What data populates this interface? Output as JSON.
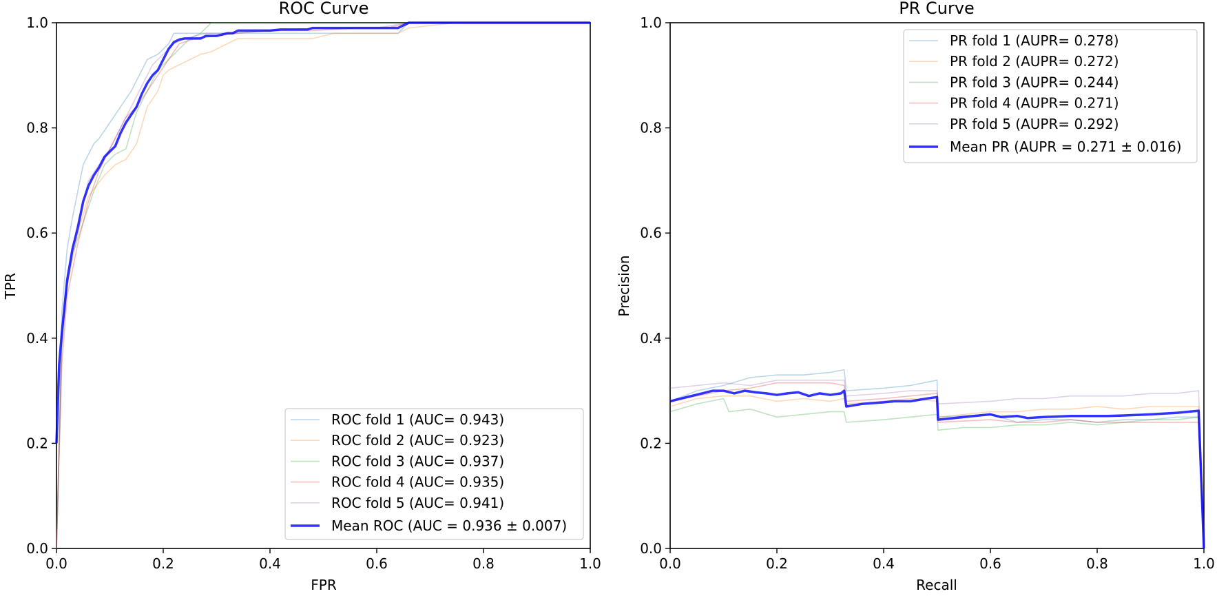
{
  "colors": {
    "fold1": "#1f77b4",
    "fold2": "#ff7f0e",
    "fold3": "#2ca02c",
    "fold4": "#d62728",
    "fold5": "#9467bd",
    "mean": "#0000ff"
  },
  "chart_data": [
    {
      "type": "line",
      "title": "ROC Curve",
      "xlabel": "FPR",
      "ylabel": "TPR",
      "xlim": [
        0,
        1
      ],
      "ylim": [
        0,
        1
      ],
      "xticks": [
        "0.0",
        "0.2",
        "0.4",
        "0.6",
        "0.8",
        "1.0"
      ],
      "yticks": [
        "0.0",
        "0.2",
        "0.4",
        "0.6",
        "0.8",
        "1.0"
      ],
      "grid": false,
      "legend_position": "lower-right",
      "series": [
        {
          "name": "ROC fold 1 (AUC= 0.943)",
          "color_key": "fold1",
          "x": [
            0,
            0.005,
            0.01,
            0.02,
            0.03,
            0.05,
            0.07,
            0.08,
            0.1,
            0.12,
            0.14,
            0.17,
            0.19,
            0.21,
            0.22,
            0.24,
            0.26,
            0.3,
            0.36,
            0.45,
            0.5,
            0.56,
            0.64,
            0.66,
            0.78,
            1
          ],
          "y": [
            0,
            0.2,
            0.45,
            0.57,
            0.63,
            0.73,
            0.77,
            0.78,
            0.81,
            0.84,
            0.87,
            0.93,
            0.94,
            0.96,
            0.98,
            0.98,
            0.98,
            0.98,
            0.98,
            0.98,
            0.98,
            0.98,
            0.98,
            1,
            1,
            1
          ]
        },
        {
          "name": "ROC fold 2 (AUC= 0.923)",
          "color_key": "fold2",
          "x": [
            0,
            0.01,
            0.02,
            0.04,
            0.06,
            0.09,
            0.11,
            0.13,
            0.15,
            0.17,
            0.19,
            0.2,
            0.21,
            0.23,
            0.25,
            0.27,
            0.29,
            0.3,
            0.32,
            0.34,
            0.4,
            0.48,
            0.52,
            0.58,
            0.64,
            0.66,
            0.75,
            0.8,
            1
          ],
          "y": [
            0,
            0.4,
            0.5,
            0.6,
            0.67,
            0.71,
            0.73,
            0.74,
            0.77,
            0.84,
            0.87,
            0.9,
            0.91,
            0.92,
            0.93,
            0.94,
            0.945,
            0.95,
            0.96,
            0.97,
            0.97,
            0.97,
            0.98,
            0.98,
            0.98,
            0.99,
            1,
            1,
            1
          ]
        },
        {
          "name": "ROC fold 3 (AUC= 0.937)",
          "color_key": "fold3",
          "x": [
            0,
            0.01,
            0.02,
            0.03,
            0.05,
            0.07,
            0.09,
            0.11,
            0.13,
            0.15,
            0.17,
            0.19,
            0.21,
            0.23,
            0.25,
            0.27,
            0.29,
            0.3,
            0.35,
            0.5,
            0.66,
            0.8,
            1
          ],
          "y": [
            0,
            0.38,
            0.5,
            0.56,
            0.62,
            0.68,
            0.73,
            0.75,
            0.76,
            0.83,
            0.87,
            0.91,
            0.93,
            0.95,
            0.97,
            0.98,
            1,
            1,
            1,
            1,
            1,
            1,
            1
          ]
        },
        {
          "name": "ROC fold 4 (AUC= 0.935)",
          "color_key": "fold4",
          "x": [
            0,
            0.01,
            0.02,
            0.04,
            0.06,
            0.08,
            0.1,
            0.12,
            0.13,
            0.15,
            0.17,
            0.19,
            0.21,
            0.23,
            0.26,
            0.3,
            0.34,
            0.4,
            0.48,
            0.56,
            0.62,
            0.66,
            0.8,
            1
          ],
          "y": [
            0,
            0.35,
            0.48,
            0.58,
            0.66,
            0.72,
            0.76,
            0.8,
            0.82,
            0.84,
            0.87,
            0.9,
            0.93,
            0.96,
            0.97,
            0.975,
            0.98,
            0.985,
            0.985,
            0.99,
            0.99,
            1,
            1,
            1
          ]
        },
        {
          "name": "ROC fold 5 (AUC= 0.941)",
          "color_key": "fold5",
          "x": [
            0,
            0.01,
            0.02,
            0.04,
            0.06,
            0.08,
            0.1,
            0.12,
            0.14,
            0.16,
            0.18,
            0.2,
            0.22,
            0.24,
            0.28,
            0.32,
            0.4,
            0.5,
            0.6,
            0.66,
            0.8,
            1
          ],
          "y": [
            0,
            0.4,
            0.52,
            0.62,
            0.7,
            0.73,
            0.76,
            0.8,
            0.84,
            0.88,
            0.92,
            0.94,
            0.96,
            0.97,
            0.98,
            0.98,
            0.985,
            0.99,
            0.99,
            1,
            1,
            1
          ]
        },
        {
          "name": "Mean ROC (AUC = 0.936 ± 0.007)",
          "color_key": "mean",
          "mean": true,
          "x": [
            0,
            0.005,
            0.01,
            0.02,
            0.03,
            0.04,
            0.05,
            0.06,
            0.07,
            0.08,
            0.09,
            0.1,
            0.11,
            0.12,
            0.13,
            0.14,
            0.15,
            0.16,
            0.17,
            0.18,
            0.19,
            0.2,
            0.21,
            0.22,
            0.23,
            0.24,
            0.25,
            0.27,
            0.28,
            0.29,
            0.3,
            0.32,
            0.33,
            0.34,
            0.35,
            0.4,
            0.42,
            0.45,
            0.47,
            0.48,
            0.55,
            0.6,
            0.62,
            0.63,
            0.64,
            0.66,
            0.7,
            0.8,
            0.9,
            1
          ],
          "y": [
            0.2,
            0.35,
            0.41,
            0.51,
            0.57,
            0.61,
            0.66,
            0.69,
            0.71,
            0.725,
            0.745,
            0.755,
            0.765,
            0.79,
            0.81,
            0.825,
            0.84,
            0.865,
            0.885,
            0.9,
            0.91,
            0.93,
            0.95,
            0.963,
            0.968,
            0.97,
            0.97,
            0.97,
            0.975,
            0.975,
            0.975,
            0.98,
            0.98,
            0.985,
            0.985,
            0.985,
            0.987,
            0.987,
            0.987,
            0.99,
            0.99,
            0.99,
            0.99,
            0.99,
            0.99,
            1,
            1,
            1,
            1,
            1
          ]
        }
      ]
    },
    {
      "type": "line",
      "title": "PR Curve",
      "xlabel": "Recall",
      "ylabel": "Precision",
      "xlim": [
        0,
        1
      ],
      "ylim": [
        0,
        1
      ],
      "xticks": [
        "0.0",
        "0.2",
        "0.4",
        "0.6",
        "0.8",
        "1.0"
      ],
      "yticks": [
        "0.0",
        "0.2",
        "0.4",
        "0.6",
        "0.8",
        "1.0"
      ],
      "grid": false,
      "legend_position": "upper-right",
      "series": [
        {
          "name": "PR fold 1 (AUPR= 0.278)",
          "color_key": "fold1",
          "x": [
            0,
            0.05,
            0.1,
            0.15,
            0.2,
            0.25,
            0.3,
            0.326,
            0.33,
            0.4,
            0.45,
            0.5,
            0.502,
            0.6,
            0.65,
            0.7,
            0.75,
            0.8,
            0.85,
            0.9,
            0.95,
            0.99,
            1
          ],
          "y": [
            0.28,
            0.3,
            0.31,
            0.325,
            0.33,
            0.33,
            0.335,
            0.34,
            0.3,
            0.305,
            0.31,
            0.32,
            0.25,
            0.255,
            0.24,
            0.245,
            0.245,
            0.24,
            0.245,
            0.245,
            0.25,
            0.25,
            0
          ]
        },
        {
          "name": "PR fold 2 (AUPR= 0.272)",
          "color_key": "fold2",
          "x": [
            0,
            0.05,
            0.1,
            0.15,
            0.2,
            0.25,
            0.3,
            0.326,
            0.33,
            0.4,
            0.45,
            0.5,
            0.502,
            0.6,
            0.65,
            0.7,
            0.75,
            0.8,
            0.85,
            0.9,
            0.95,
            0.99,
            1
          ],
          "y": [
            0.27,
            0.285,
            0.29,
            0.29,
            0.28,
            0.285,
            0.28,
            0.285,
            0.275,
            0.28,
            0.285,
            0.28,
            0.25,
            0.26,
            0.26,
            0.265,
            0.265,
            0.27,
            0.265,
            0.27,
            0.27,
            0.27,
            0
          ]
        },
        {
          "name": "PR fold 3 (AUPR= 0.244)",
          "color_key": "fold3",
          "x": [
            0,
            0.05,
            0.1,
            0.11,
            0.15,
            0.2,
            0.25,
            0.3,
            0.326,
            0.33,
            0.4,
            0.45,
            0.5,
            0.502,
            0.55,
            0.6,
            0.65,
            0.7,
            0.75,
            0.8,
            0.85,
            0.9,
            0.95,
            0.99,
            1
          ],
          "y": [
            0.26,
            0.275,
            0.285,
            0.26,
            0.265,
            0.25,
            0.255,
            0.26,
            0.26,
            0.24,
            0.245,
            0.25,
            0.255,
            0.225,
            0.23,
            0.23,
            0.235,
            0.235,
            0.24,
            0.235,
            0.24,
            0.245,
            0.245,
            0.25,
            0
          ]
        },
        {
          "name": "PR fold 4 (AUPR= 0.271)",
          "color_key": "fold4",
          "x": [
            0,
            0.05,
            0.1,
            0.15,
            0.2,
            0.25,
            0.3,
            0.326,
            0.33,
            0.4,
            0.45,
            0.5,
            0.502,
            0.6,
            0.65,
            0.7,
            0.75,
            0.8,
            0.85,
            0.9,
            0.95,
            0.99,
            1
          ],
          "y": [
            0.28,
            0.29,
            0.3,
            0.305,
            0.315,
            0.315,
            0.315,
            0.31,
            0.28,
            0.285,
            0.29,
            0.295,
            0.24,
            0.245,
            0.24,
            0.24,
            0.245,
            0.24,
            0.24,
            0.24,
            0.24,
            0.24,
            0
          ]
        },
        {
          "name": "PR fold 5 (AUPR= 0.292)",
          "color_key": "fold5",
          "x": [
            0,
            0.05,
            0.1,
            0.15,
            0.2,
            0.25,
            0.3,
            0.326,
            0.33,
            0.4,
            0.45,
            0.5,
            0.502,
            0.6,
            0.65,
            0.7,
            0.75,
            0.8,
            0.85,
            0.9,
            0.95,
            0.99,
            1
          ],
          "y": [
            0.305,
            0.31,
            0.315,
            0.31,
            0.32,
            0.32,
            0.32,
            0.32,
            0.29,
            0.295,
            0.3,
            0.3,
            0.275,
            0.28,
            0.285,
            0.285,
            0.29,
            0.29,
            0.29,
            0.295,
            0.295,
            0.3,
            0
          ]
        },
        {
          "name": "Mean PR (AUPR = 0.271 ± 0.016)",
          "color_key": "mean",
          "mean": true,
          "x": [
            0,
            0.02,
            0.04,
            0.06,
            0.08,
            0.1,
            0.12,
            0.14,
            0.16,
            0.18,
            0.2,
            0.22,
            0.24,
            0.26,
            0.28,
            0.3,
            0.32,
            0.326,
            0.33,
            0.36,
            0.4,
            0.42,
            0.45,
            0.48,
            0.5,
            0.502,
            0.55,
            0.6,
            0.62,
            0.65,
            0.67,
            0.7,
            0.75,
            0.8,
            0.82,
            0.85,
            0.9,
            0.95,
            0.99,
            1
          ],
          "y": [
            0.28,
            0.285,
            0.29,
            0.295,
            0.3,
            0.3,
            0.295,
            0.3,
            0.297,
            0.295,
            0.292,
            0.295,
            0.297,
            0.29,
            0.295,
            0.292,
            0.295,
            0.3,
            0.27,
            0.275,
            0.278,
            0.28,
            0.28,
            0.285,
            0.288,
            0.245,
            0.25,
            0.255,
            0.25,
            0.252,
            0.248,
            0.25,
            0.252,
            0.252,
            0.252,
            0.253,
            0.255,
            0.258,
            0.262,
            0
          ]
        }
      ]
    }
  ]
}
